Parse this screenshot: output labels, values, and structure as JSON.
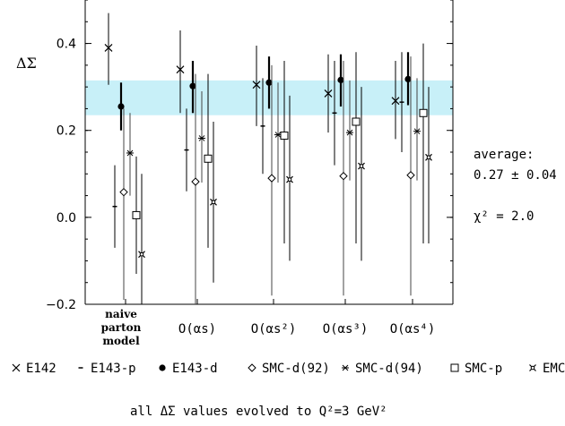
{
  "chart_data": {
    "type": "scatter",
    "ylabel": "ΔΣ",
    "ylim": [
      -0.2,
      0.5
    ],
    "yticks": [
      "0.4",
      "0.2",
      "0.0",
      "−0.2"
    ],
    "ytick_values": [
      0.4,
      0.2,
      0.0,
      -0.2
    ],
    "categories": [
      "naive parton model",
      "O(αs)",
      "O(αs²)",
      "O(αs³)",
      "O(αs⁴)"
    ],
    "band": {
      "low": 0.235,
      "high": 0.315,
      "color": "#c8f0f8"
    },
    "series": [
      {
        "name": "E142",
        "marker": "×",
        "points": [
          [
            0.39,
            0.305,
            0.47
          ],
          [
            0.34,
            0.24,
            0.43
          ],
          [
            0.305,
            0.21,
            0.395
          ],
          [
            0.285,
            0.195,
            0.375
          ],
          [
            0.268,
            0.18,
            0.36
          ]
        ]
      },
      {
        "name": "E143-p",
        "marker": "+",
        "points": [
          [
            0.025,
            -0.07,
            0.12
          ],
          [
            0.155,
            0.06,
            0.25
          ],
          [
            0.21,
            0.1,
            0.32
          ],
          [
            0.24,
            0.12,
            0.36
          ],
          [
            0.265,
            0.15,
            0.38
          ]
        ]
      },
      {
        "name": "E143-d",
        "marker": "●",
        "points": [
          [
            0.255,
            0.2,
            0.31
          ],
          [
            0.302,
            0.24,
            0.36
          ],
          [
            0.31,
            0.25,
            0.37
          ],
          [
            0.316,
            0.255,
            0.375
          ],
          [
            0.318,
            0.258,
            0.38
          ]
        ]
      },
      {
        "name": "SMC-d(92)",
        "marker": "◇",
        "points": [
          [
            0.058,
            -0.19,
            0.25
          ],
          [
            0.082,
            -0.2,
            0.33
          ],
          [
            0.09,
            -0.18,
            0.35
          ],
          [
            0.095,
            -0.18,
            0.36
          ],
          [
            0.097,
            -0.18,
            0.37
          ]
        ]
      },
      {
        "name": "SMC-d(94)",
        "marker": "⋇",
        "points": [
          [
            0.148,
            0.05,
            0.24
          ],
          [
            0.182,
            0.08,
            0.29
          ],
          [
            0.19,
            0.08,
            0.31
          ],
          [
            0.195,
            0.085,
            0.315
          ],
          [
            0.198,
            0.085,
            0.32
          ]
        ]
      },
      {
        "name": "SMC-p",
        "marker": "□",
        "points": [
          [
            0.005,
            -0.13,
            0.14
          ],
          [
            0.135,
            -0.07,
            0.33
          ],
          [
            0.188,
            -0.06,
            0.36
          ],
          [
            0.22,
            -0.06,
            0.38
          ],
          [
            0.24,
            -0.06,
            0.4
          ]
        ]
      },
      {
        "name": "EMC",
        "marker": "⌘",
        "points": [
          [
            -0.085,
            -0.2,
            0.1
          ],
          [
            0.035,
            -0.15,
            0.22
          ],
          [
            0.087,
            -0.1,
            0.28
          ],
          [
            0.118,
            -0.1,
            0.3
          ],
          [
            0.138,
            -0.06,
            0.3
          ]
        ]
      }
    ]
  },
  "side": {
    "average_label": "average:",
    "average_value": "0.27 ± 0.04",
    "chi_label": "χ² = 2.0"
  },
  "footer": {
    "note": "all ΔΣ values evolved to Q²=3 GeV²"
  }
}
